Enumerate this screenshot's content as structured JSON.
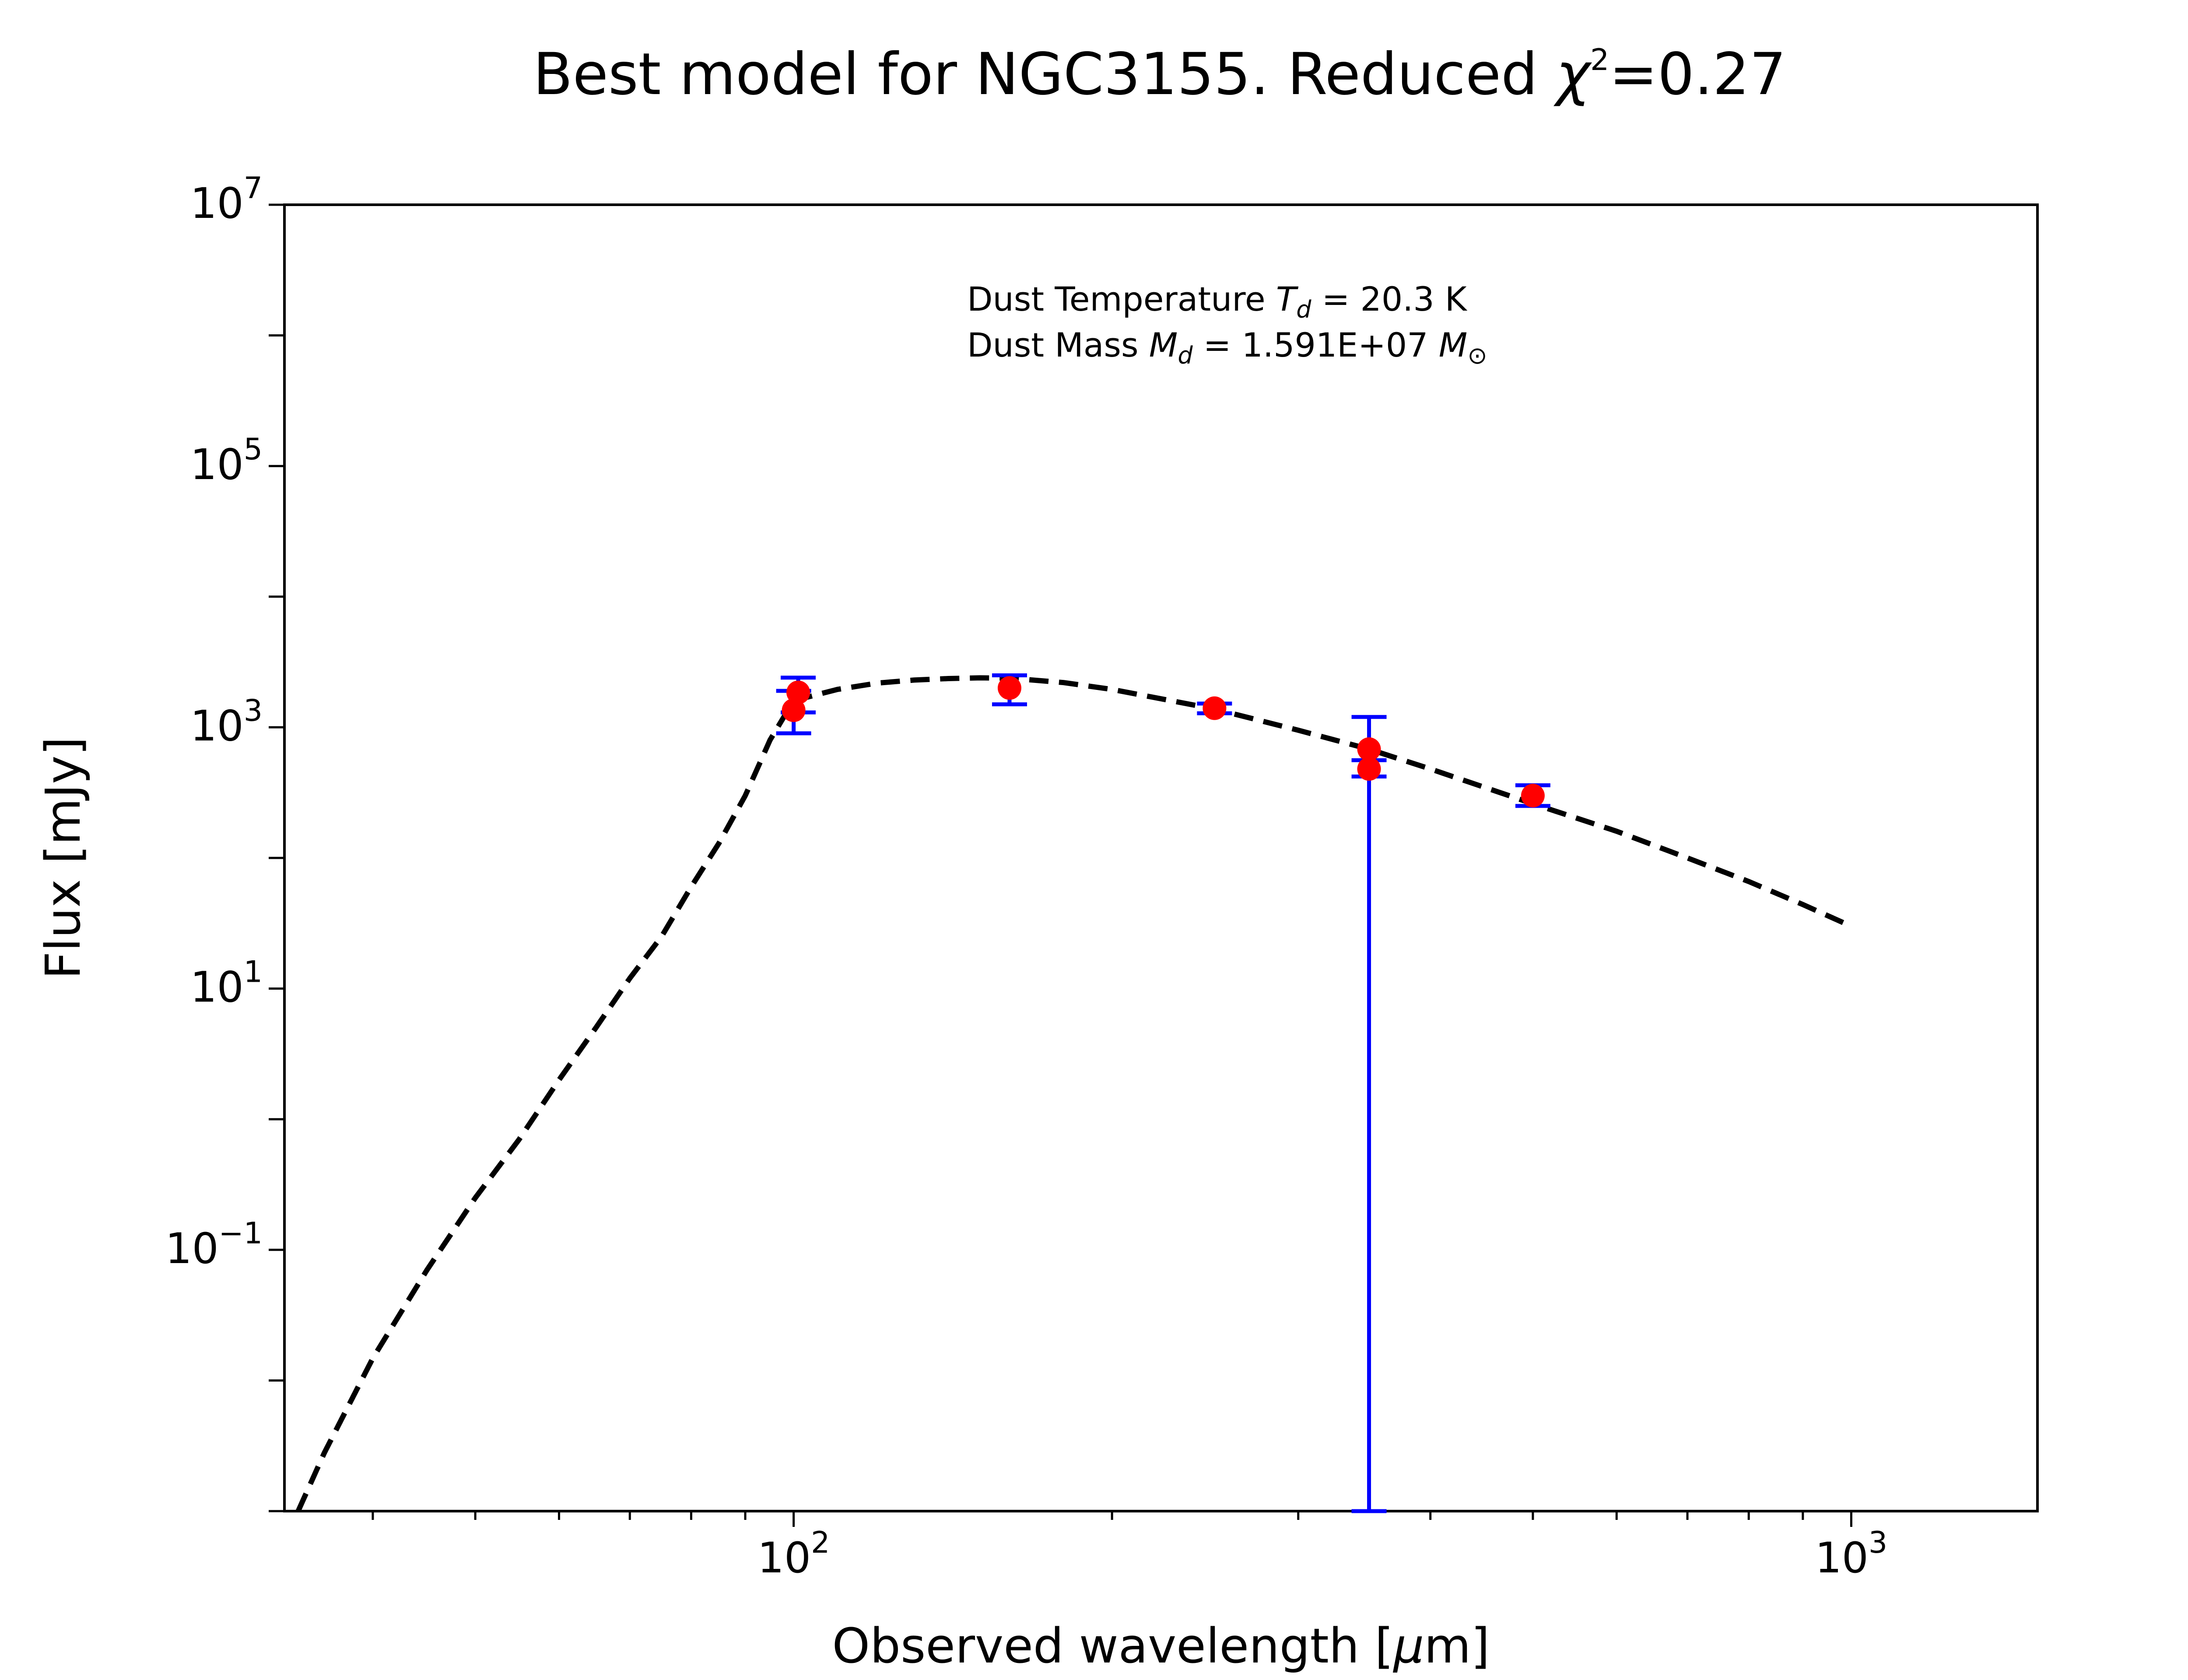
{
  "chart_data": {
    "type": "scatter",
    "title": {
      "main": "Best model for NGC3155. Reduced ",
      "chi": "χ",
      "sup": "2",
      "value": "=0.27"
    },
    "xlabel": {
      "prefix": "Observed wavelength [",
      "mu": "μ",
      "suffix": "m]"
    },
    "ylabel": "Flux [mJy]",
    "x_scale": "log",
    "y_scale": "log",
    "xlim": [
      33,
      1500
    ],
    "ylim": [
      0.001,
      10000000
    ],
    "x_ticks": [
      {
        "value": 100,
        "base": "10",
        "exp": "2"
      },
      {
        "value": 1000,
        "base": "10",
        "exp": "3"
      }
    ],
    "y_ticks": [
      {
        "value": 10000000,
        "base": "10",
        "exp": "7"
      },
      {
        "value": 100000,
        "base": "10",
        "exp": "5"
      },
      {
        "value": 1000,
        "base": "10",
        "exp": "3"
      },
      {
        "value": 10,
        "base": "10",
        "exp": "1"
      },
      {
        "value": 0.1,
        "base": "10",
        "exp": "−1"
      }
    ],
    "annotations": [
      {
        "prefix": "Dust Temperature ",
        "sym": "T",
        "sub": "d",
        "suffix": " = 20.3 K"
      },
      {
        "prefix": "Dust Mass ",
        "sym": "M",
        "sub": "d",
        "suffix": " = 1.591E+07 ",
        "unit": "M",
        "unit_sub": "⊙"
      }
    ],
    "model": {
      "style": "dashed",
      "color": "#000000",
      "points": [
        [
          34,
          0.001
        ],
        [
          36,
          0.0028
        ],
        [
          40,
          0.0148
        ],
        [
          45,
          0.07
        ],
        [
          50,
          0.25
        ],
        [
          55,
          0.7
        ],
        [
          60,
          2.0
        ],
        [
          65,
          5.0
        ],
        [
          70,
          12
        ],
        [
          75,
          25
        ],
        [
          80,
          60
        ],
        [
          85,
          130
        ],
        [
          90,
          300
        ],
        [
          95,
          800
        ],
        [
          100,
          1600
        ],
        [
          110,
          1950
        ],
        [
          120,
          2180
        ],
        [
          130,
          2300
        ],
        [
          140,
          2360
        ],
        [
          150,
          2390
        ],
        [
          160,
          2380
        ],
        [
          180,
          2200
        ],
        [
          200,
          1950
        ],
        [
          250,
          1380
        ],
        [
          300,
          950
        ],
        [
          350,
          680
        ],
        [
          400,
          480
        ],
        [
          500,
          260
        ],
        [
          600,
          160
        ],
        [
          700,
          100
        ],
        [
          800,
          66
        ],
        [
          900,
          44
        ],
        [
          1000,
          30
        ]
      ]
    },
    "observations": {
      "marker_color": "#ff0000",
      "errorbar_color": "#0000ff",
      "points": [
        {
          "x": 100,
          "y": 1350,
          "ylow": 900,
          "yhigh": 1900
        },
        {
          "x": 101,
          "y": 1850,
          "ylow": 1300,
          "yhigh": 2400
        },
        {
          "x": 160,
          "y": 2000,
          "ylow": 1500,
          "yhigh": 2500
        },
        {
          "x": 250,
          "y": 1400,
          "ylow": 1280,
          "yhigh": 1520
        },
        {
          "x": 350,
          "y": 680,
          "ylow": 0.001,
          "yhigh": 1200
        },
        {
          "x": 350,
          "y": 480,
          "ylow": 420,
          "yhigh": 560
        },
        {
          "x": 500,
          "y": 300,
          "ylow": 250,
          "yhigh": 360
        }
      ]
    }
  }
}
